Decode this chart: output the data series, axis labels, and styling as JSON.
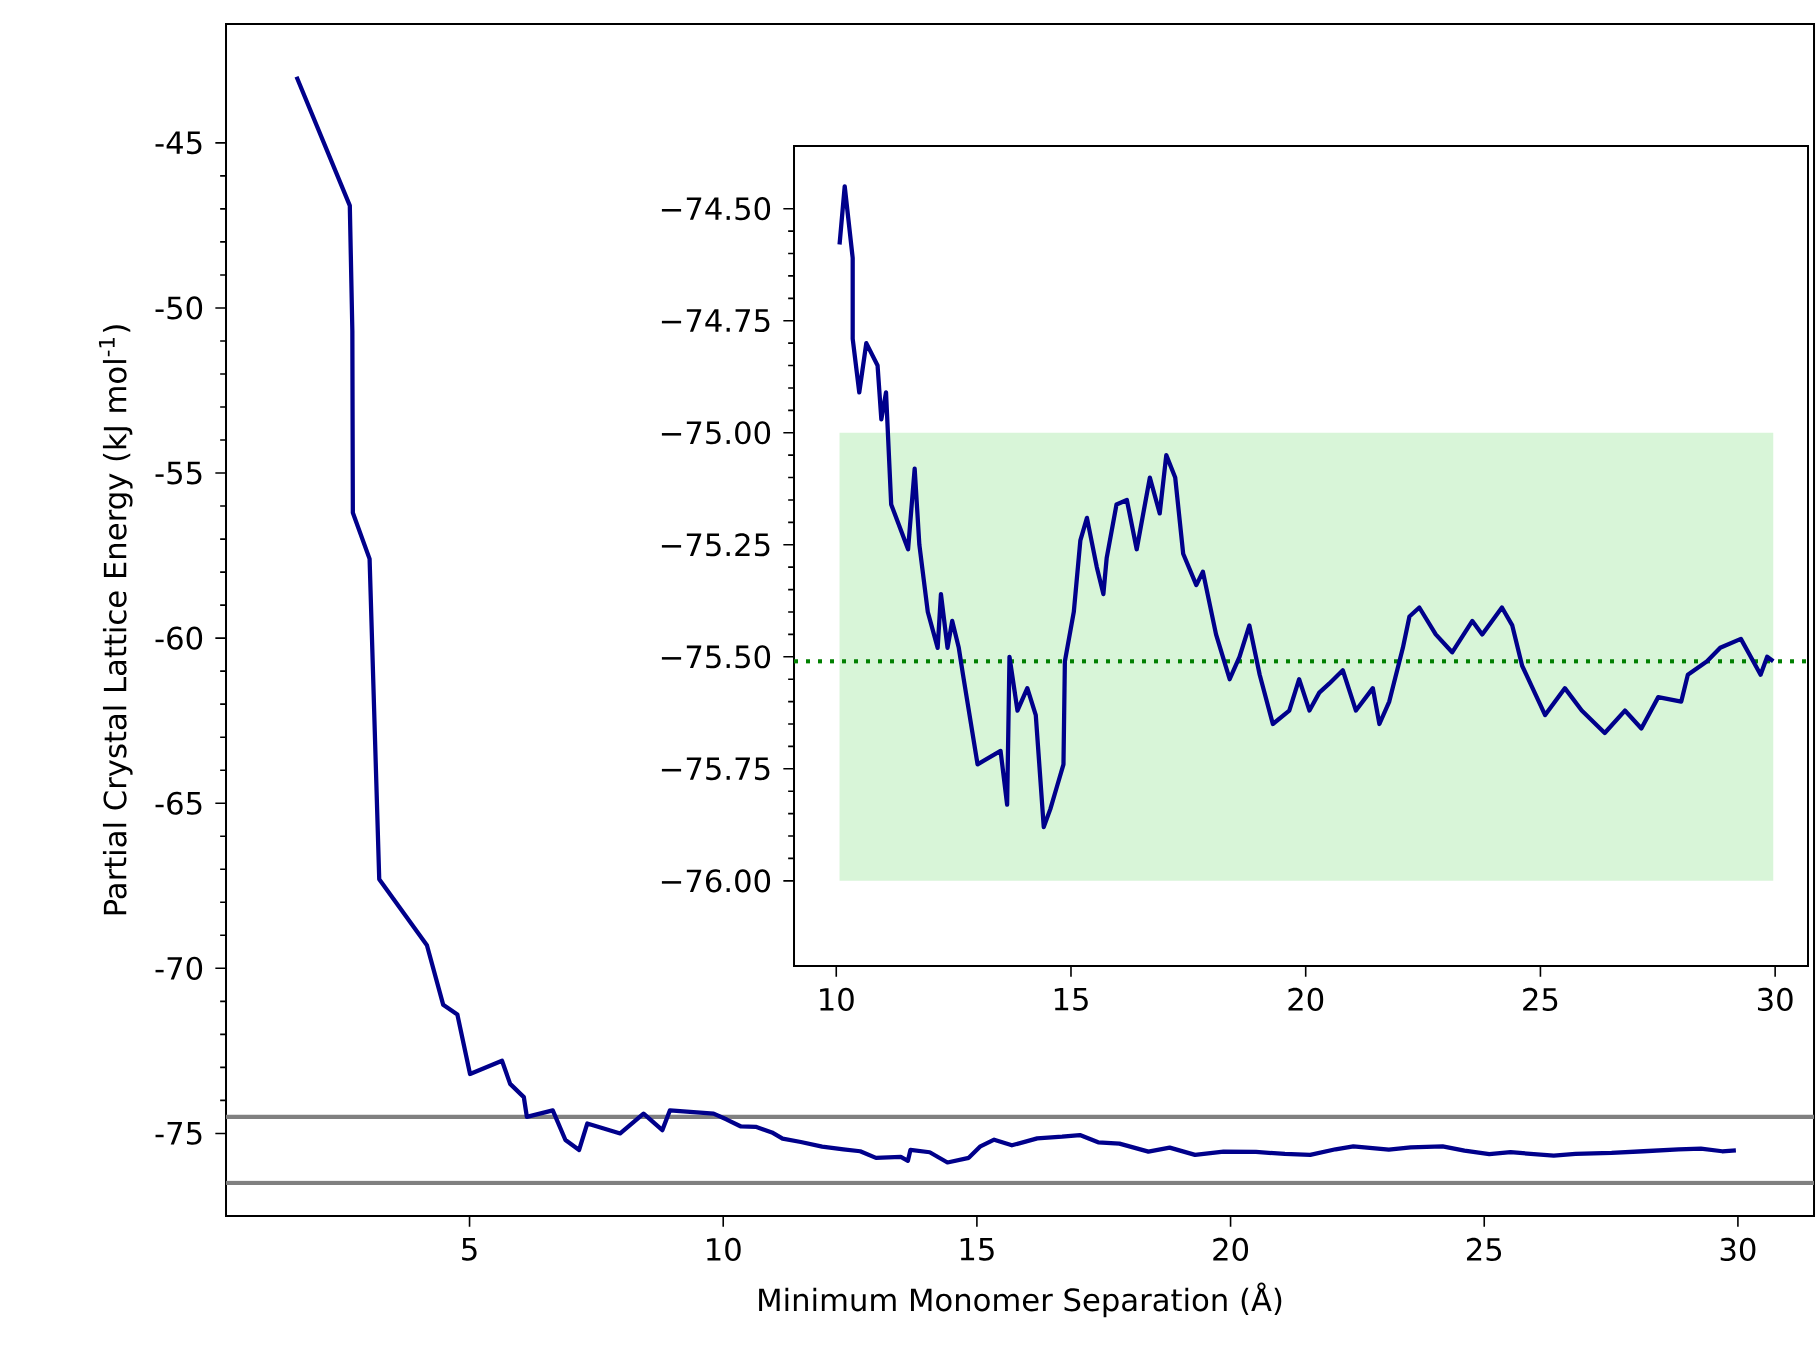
{
  "chart_data": [
    {
      "type": "line",
      "xlabel": "Minimum Monomer Separation (Å)",
      "ylabel": "Partial Crystal Lattice Energy (kJ mol$^{-1}$)",
      "color": "#00008b",
      "xlim": [
        0.2,
        31.5
      ],
      "ylim": [
        -77.5,
        -41.4
      ],
      "xticks": [
        5,
        10,
        15,
        20,
        25,
        30
      ],
      "yticks": [
        -75,
        -70,
        -65,
        -60,
        -55,
        -50,
        -45
      ],
      "x": [
        1.59,
        2.64,
        2.69,
        2.7,
        3.03,
        3.22,
        4.16,
        4.48,
        4.76,
        5.01,
        5.64,
        5.8,
        6.07,
        6.13,
        6.64,
        6.89,
        7.16,
        7.32,
        7.97,
        8.43,
        8.8,
        8.95,
        9.81,
        10.07,
        10.35,
        10.64,
        10.96,
        11.17,
        11.53,
        11.95,
        12.37,
        12.7,
        13.01,
        13.5,
        13.64,
        13.69,
        14.07,
        14.42,
        14.84,
        15.06,
        15.34,
        15.69,
        16.19,
        16.68,
        17.03,
        17.39,
        17.81,
        18.38,
        18.8,
        19.3,
        19.86,
        20.5,
        21.07,
        21.57,
        22.07,
        22.42,
        23.12,
        23.55,
        24.18,
        24.61,
        25.1,
        25.52,
        26.37,
        26.8,
        27.51,
        28.14,
        28.83,
        29.27,
        29.69,
        29.96
      ],
      "values": [
        -43.0,
        -46.9,
        -50.7,
        -56.2,
        -57.6,
        -67.3,
        -69.3,
        -71.1,
        -71.4,
        -73.2,
        -72.8,
        -73.5,
        -73.9,
        -74.5,
        -74.3,
        -75.2,
        -75.5,
        -74.7,
        -75.0,
        -74.4,
        -74.9,
        -74.3,
        -74.4,
        -74.58,
        -74.79,
        -74.8,
        -74.97,
        -75.16,
        -75.26,
        -75.4,
        -75.48,
        -75.54,
        -75.74,
        -75.71,
        -75.83,
        -75.5,
        -75.57,
        -75.88,
        -75.74,
        -75.4,
        -75.19,
        -75.36,
        -75.15,
        -75.1,
        -75.05,
        -75.27,
        -75.31,
        -75.55,
        -75.43,
        -75.65,
        -75.55,
        -75.56,
        -75.62,
        -75.65,
        -75.48,
        -75.39,
        -75.49,
        -75.42,
        -75.39,
        -75.52,
        -75.63,
        -75.57,
        -75.67,
        -75.62,
        -75.59,
        -75.54,
        -75.48,
        -75.46,
        -75.54,
        -75.51
      ],
      "ref_lines": [
        {
          "axis": "y",
          "value": -74.5,
          "color": "#808080",
          "line_style": "solid"
        },
        {
          "axis": "y",
          "value": -76.5,
          "color": "#808080",
          "line_style": "solid"
        }
      ]
    },
    {
      "type": "line",
      "color": "#00008b",
      "xlim": [
        9.1,
        30.7
      ],
      "ylim": [
        -76.19,
        -74.36
      ],
      "xticks": [
        10,
        15,
        20,
        25,
        30
      ],
      "yticks": [
        {
          "value": -76.0,
          "label": "−76.00"
        },
        {
          "value": -75.75,
          "label": "−75.75"
        },
        {
          "value": -75.5,
          "label": "−75.50"
        },
        {
          "value": -75.25,
          "label": "−75.25"
        },
        {
          "value": -75.0,
          "label": "−75.00"
        },
        {
          "value": -74.75,
          "label": "−74.75"
        },
        {
          "value": -74.5,
          "label": "−74.50"
        }
      ],
      "x": [
        10.07,
        10.18,
        10.35,
        10.35,
        10.49,
        10.64,
        10.88,
        10.96,
        11.06,
        11.17,
        11.53,
        11.67,
        11.77,
        11.95,
        12.16,
        12.23,
        12.37,
        12.47,
        12.61,
        12.7,
        13.01,
        13.5,
        13.64,
        13.69,
        13.86,
        14.07,
        14.25,
        14.42,
        14.56,
        14.7,
        14.84,
        14.87,
        15.06,
        15.2,
        15.34,
        15.55,
        15.69,
        15.76,
        15.97,
        16.19,
        16.4,
        16.68,
        16.89,
        17.03,
        17.22,
        17.39,
        17.67,
        17.81,
        18.09,
        18.38,
        18.59,
        18.8,
        19.02,
        19.3,
        19.65,
        19.86,
        20.08,
        20.29,
        20.5,
        20.79,
        21.07,
        21.43,
        21.57,
        21.78,
        22.07,
        22.21,
        22.42,
        22.77,
        23.12,
        23.55,
        23.76,
        24.18,
        24.4,
        24.61,
        25.1,
        25.52,
        25.88,
        26.37,
        26.8,
        27.15,
        27.51,
        28.0,
        28.14,
        28.55,
        28.83,
        29.27,
        29.48,
        29.69,
        29.83,
        29.96
      ],
      "values": [
        -74.58,
        -74.45,
        -74.61,
        -74.79,
        -74.91,
        -74.8,
        -74.85,
        -74.97,
        -74.91,
        -75.16,
        -75.26,
        -75.08,
        -75.25,
        -75.4,
        -75.48,
        -75.36,
        -75.48,
        -75.42,
        -75.48,
        -75.54,
        -75.74,
        -75.71,
        -75.83,
        -75.5,
        -75.62,
        -75.57,
        -75.63,
        -75.88,
        -75.84,
        -75.79,
        -75.74,
        -75.51,
        -75.4,
        -75.24,
        -75.19,
        -75.3,
        -75.36,
        -75.28,
        -75.16,
        -75.15,
        -75.26,
        -75.1,
        -75.18,
        -75.05,
        -75.1,
        -75.27,
        -75.34,
        -75.31,
        -75.45,
        -75.55,
        -75.5,
        -75.43,
        -75.54,
        -75.65,
        -75.62,
        -75.55,
        -75.62,
        -75.58,
        -75.56,
        -75.53,
        -75.62,
        -75.57,
        -75.65,
        -75.6,
        -75.48,
        -75.41,
        -75.39,
        -75.45,
        -75.49,
        -75.42,
        -75.45,
        -75.39,
        -75.43,
        -75.52,
        -75.63,
        -75.57,
        -75.62,
        -75.67,
        -75.62,
        -75.66,
        -75.59,
        -75.6,
        -75.54,
        -75.51,
        -75.48,
        -75.46,
        -75.5,
        -75.54,
        -75.5,
        -75.51
      ],
      "bands": [
        {
          "axis": "y",
          "from": -76.0,
          "to": -75.0,
          "color": "#d8f5d8"
        }
      ],
      "ref_lines": [
        {
          "axis": "y",
          "value": -75.51,
          "color": "#008000",
          "line_style": "dotted"
        }
      ]
    }
  ]
}
